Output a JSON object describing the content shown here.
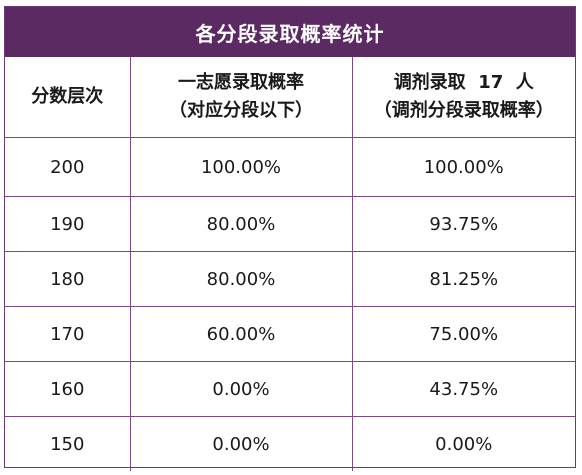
{
  "title": "各分段录取概率统计",
  "headers": [
    {
      "lines": [
        "分数层次"
      ]
    },
    {
      "lines": [
        "一志愿录取概率",
        "（对应分段以下）"
      ]
    },
    {
      "lines": [
        "调剂录取  17  人",
        "（调剂分段录取概率）"
      ]
    }
  ],
  "rows": [
    {
      "score": "200",
      "first_choice": "100.00%",
      "adjusted": "100.00%"
    },
    {
      "score": "190",
      "first_choice": "80.00%",
      "adjusted": "93.75%"
    },
    {
      "score": "180",
      "first_choice": "80.00%",
      "adjusted": "81.25%"
    },
    {
      "score": "170",
      "first_choice": "60.00%",
      "adjusted": "75.00%"
    },
    {
      "score": "160",
      "first_choice": "0.00%",
      "adjusted": "43.75%"
    },
    {
      "score": "150",
      "first_choice": "0.00%",
      "adjusted": "0.00%"
    }
  ],
  "colors": {
    "title_bg": "#5b2a63",
    "border": "#7a4a86",
    "title_text": "#ffffff"
  }
}
